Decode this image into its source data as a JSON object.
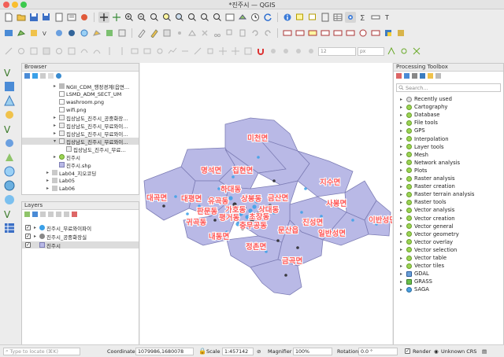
{
  "window": {
    "title": "*진주시 — QGIS"
  },
  "toolbar": {
    "font_size_value": "12",
    "font_unit": "px"
  },
  "browser": {
    "title": "Browser",
    "items": [
      {
        "label": "NGII_CDM_행정경계(읍면…",
        "kind": "folder"
      },
      {
        "label": "LSMD_ADM_SECT_UM",
        "kind": "file"
      },
      {
        "label": "washroom.png",
        "kind": "image"
      },
      {
        "label": "wifi.png",
        "kind": "image"
      },
      {
        "label": "집상남도_진주시_공중화장…",
        "kind": "table"
      },
      {
        "label": "집상남도_진주시_무료와이…",
        "kind": "table"
      },
      {
        "label": "집상남도_진주시_무료와이…",
        "kind": "table"
      },
      {
        "label": "집상남도_진주시_무료와이…",
        "kind": "table"
      },
      {
        "label": "집상남도_진주시_무료…",
        "kind": "table"
      },
      {
        "label": "진주시",
        "kind": "qgs"
      },
      {
        "label": "진주시.shp",
        "kind": "shp"
      },
      {
        "label": "Lab04_지오코딩",
        "kind": "folder"
      },
      {
        "label": "Lab05",
        "kind": "folder"
      },
      {
        "label": "Lab06",
        "kind": "folder"
      }
    ]
  },
  "layers": {
    "title": "Layers",
    "items": [
      {
        "label": "진주시_무료와이파이",
        "checked": true
      },
      {
        "label": "진주시_공중화장실",
        "checked": true
      },
      {
        "label": "진주시",
        "checked": true
      }
    ]
  },
  "map": {
    "labels": [
      "미천면",
      "명석면",
      "집현면",
      "대평면",
      "대곡면",
      "지수면",
      "사봉면",
      "이반성면",
      "일반성면",
      "진성면",
      "정촌면",
      "금곡면",
      "내동면",
      "귀곡동",
      "판문동",
      "유곡동",
      "평거동",
      "하대동",
      "상봉동",
      "상대동",
      "충무공동",
      "가호동",
      "문산읍",
      "초장동",
      "금산면"
    ]
  },
  "processing": {
    "title": "Processing Toolbox",
    "search_placeholder": "Search...",
    "items": [
      {
        "label": "Recently used",
        "icon": "clock"
      },
      {
        "label": "Cartography",
        "icon": "qgis"
      },
      {
        "label": "Database",
        "icon": "qgis"
      },
      {
        "label": "File tools",
        "icon": "qgis"
      },
      {
        "label": "GPS",
        "icon": "qgis"
      },
      {
        "label": "Interpolation",
        "icon": "qgis"
      },
      {
        "label": "Layer tools",
        "icon": "qgis"
      },
      {
        "label": "Mesh",
        "icon": "qgis"
      },
      {
        "label": "Network analysis",
        "icon": "qgis"
      },
      {
        "label": "Plots",
        "icon": "qgis"
      },
      {
        "label": "Raster analysis",
        "icon": "qgis"
      },
      {
        "label": "Raster creation",
        "icon": "qgis"
      },
      {
        "label": "Raster terrain analysis",
        "icon": "qgis"
      },
      {
        "label": "Raster tools",
        "icon": "qgis"
      },
      {
        "label": "Vector analysis",
        "icon": "qgis"
      },
      {
        "label": "Vector creation",
        "icon": "qgis"
      },
      {
        "label": "Vector general",
        "icon": "qgis"
      },
      {
        "label": "Vector geometry",
        "icon": "qgis"
      },
      {
        "label": "Vector overlay",
        "icon": "qgis"
      },
      {
        "label": "Vector selection",
        "icon": "qgis"
      },
      {
        "label": "Vector table",
        "icon": "qgis"
      },
      {
        "label": "Vector tiles",
        "icon": "qgis"
      },
      {
        "label": "GDAL",
        "icon": "gdal"
      },
      {
        "label": "GRASS",
        "icon": "grass"
      },
      {
        "label": "SAGA",
        "icon": "saga"
      }
    ]
  },
  "status": {
    "locate_placeholder": "Type to locate (⌘K)",
    "coordinate_label": "Coordinate",
    "coordinate_value": "1079986,1680078",
    "scale_label": "Scale",
    "scale_value": "1:457142",
    "magnifier_label": "Magnifier",
    "magnifier_value": "100%",
    "rotation_label": "Rotation",
    "rotation_value": "0.0 °",
    "render_label": "Render",
    "crs_label": "Unknown CRS"
  },
  "colors": {
    "polygon_fill": "#b9b9e6",
    "polygon_stroke": "#7d7db5",
    "label": "#ff5a5a",
    "point_blue": "#3aa0e8"
  }
}
